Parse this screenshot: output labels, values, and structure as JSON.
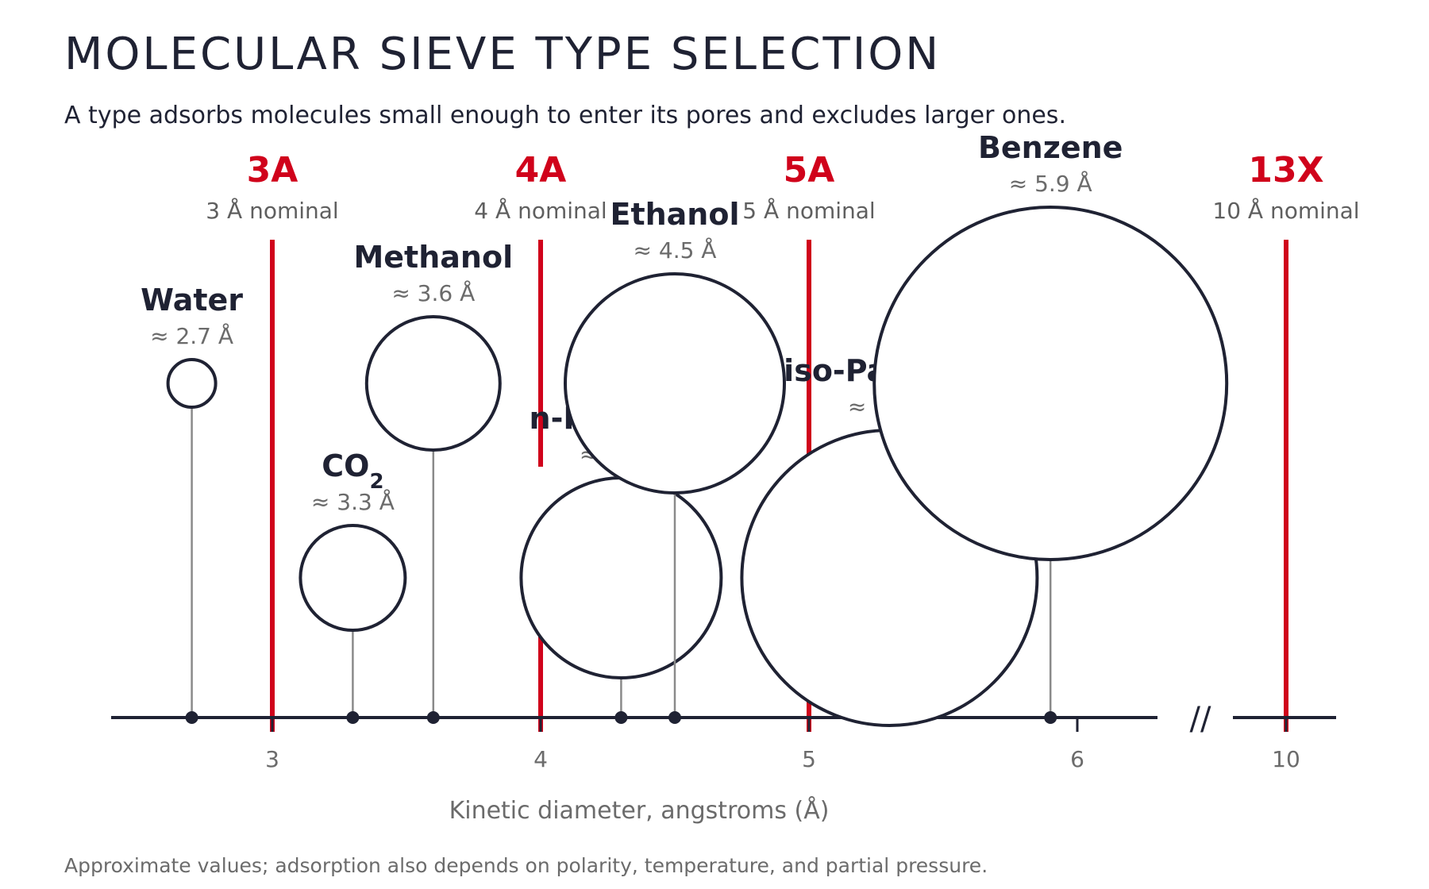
{
  "title": "MOLECULAR SIEVE TYPE SELECTION",
  "subtitle": "A type adsorbs molecules small enough to enter its pores and excludes larger ones.",
  "footnote": "Approximate values; adsorption also depends on polarity, temperature, and partial pressure.",
  "colors": {
    "sieve": "#d0021b",
    "ink": "#1f2233",
    "muted": "#6b6b6b",
    "stem": "#8a8a8a"
  },
  "chart_data": {
    "type": "scatter",
    "xlabel": "Kinetic diameter, angstroms (Å)",
    "axis_break": "//",
    "xlim": [
      2.4,
      10.2
    ],
    "x_ticks": [
      {
        "value": 3,
        "label": "3"
      },
      {
        "value": 4,
        "label": "4"
      },
      {
        "value": 5,
        "label": "5"
      },
      {
        "value": 6,
        "label": "6"
      },
      {
        "value": 10,
        "label": "10"
      }
    ],
    "sieves": [
      {
        "name": "3A",
        "pore": 3,
        "pore_label": "3 Å nominal"
      },
      {
        "name": "4A",
        "pore": 4,
        "pore_label": "4 Å nominal"
      },
      {
        "name": "5A",
        "pore": 5,
        "pore_label": "5 Å nominal"
      },
      {
        "name": "13X",
        "pore": 10,
        "pore_label": "10 Å nominal"
      }
    ],
    "molecules": [
      {
        "name": "Water",
        "sub": "",
        "diameter": 2.7,
        "label": "≈ 2.7 Å",
        "row": "upper"
      },
      {
        "name": "CO",
        "sub": "2",
        "diameter": 3.3,
        "label": "≈ 3.3 Å",
        "row": "lower"
      },
      {
        "name": "Methanol",
        "sub": "",
        "diameter": 3.6,
        "label": "≈ 3.6 Å",
        "row": "upper"
      },
      {
        "name": "n-Paraffins",
        "sub": "",
        "diameter": 4.3,
        "label": "≈ 4.3 Å",
        "row": "lower"
      },
      {
        "name": "Ethanol",
        "sub": "",
        "diameter": 4.5,
        "label": "≈ 4.5 Å",
        "row": "upper"
      },
      {
        "name": "iso-Paraffins",
        "sub": "",
        "diameter": 5.3,
        "label": "≈ 5.3 Å",
        "row": "lower"
      },
      {
        "name": "Benzene",
        "sub": "",
        "diameter": 5.9,
        "label": "≈ 5.9 Å",
        "row": "upper"
      }
    ]
  }
}
